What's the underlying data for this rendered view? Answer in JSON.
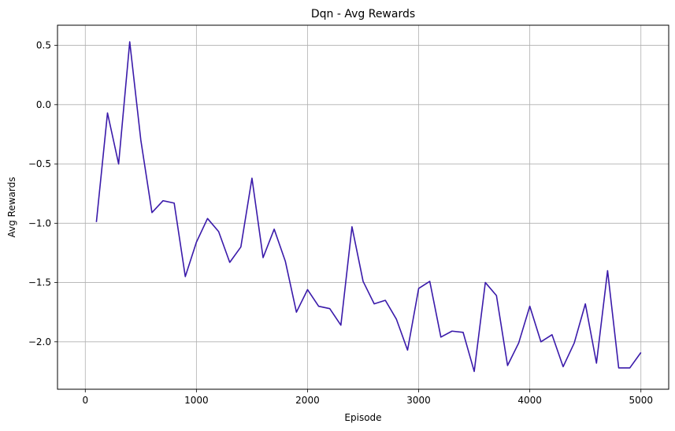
{
  "chart_data": {
    "type": "line",
    "title": "Dqn - Avg Rewards",
    "xlabel": "Episode",
    "ylabel": "Avg Rewards",
    "xlim": [
      -250,
      5250
    ],
    "ylim": [
      -2.4,
      0.67
    ],
    "xticks": [
      0,
      1000,
      2000,
      3000,
      4000,
      5000
    ],
    "xtick_labels": [
      "0",
      "1000",
      "2000",
      "3000",
      "4000",
      "5000"
    ],
    "yticks": [
      0.5,
      0.0,
      -0.5,
      -1.0,
      -1.5,
      -2.0
    ],
    "ytick_labels": [
      "0.5",
      "0.0",
      "−0.5",
      "−1.0",
      "−1.5",
      "−2.0"
    ],
    "grid": true,
    "line_color": "#3a1aaa",
    "series": [
      {
        "x": [
          100,
          200,
          300,
          400,
          500,
          600,
          700,
          800,
          900,
          1000,
          1100,
          1200,
          1300,
          1400,
          1500,
          1600,
          1700,
          1800,
          1900,
          2000,
          2100,
          2200,
          2300,
          2400,
          2500,
          2600,
          2700,
          2800,
          2900,
          3000,
          3100,
          3200,
          3300,
          3400,
          3500,
          3600,
          3700,
          3800,
          3900,
          4000,
          4100,
          4200,
          4300,
          4400,
          4500,
          4600,
          4700,
          4800,
          4900,
          5000
        ],
        "values": [
          -0.99,
          -0.07,
          -0.5,
          0.53,
          -0.3,
          -0.91,
          -0.81,
          -0.83,
          -1.45,
          -1.16,
          -0.96,
          -1.07,
          -1.33,
          -1.2,
          -0.62,
          -1.29,
          -1.05,
          -1.32,
          -1.75,
          -1.56,
          -1.7,
          -1.72,
          -1.86,
          -1.03,
          -1.49,
          -1.68,
          -1.65,
          -1.81,
          -2.07,
          -1.55,
          -1.49,
          -1.96,
          -1.91,
          -1.92,
          -2.25,
          -1.5,
          -1.61,
          -2.2,
          -2.01,
          -1.7,
          -2.0,
          -1.94,
          -2.21,
          -2.01,
          -1.68,
          -2.18,
          -1.4,
          -2.22,
          -2.22,
          -2.09
        ]
      }
    ]
  }
}
